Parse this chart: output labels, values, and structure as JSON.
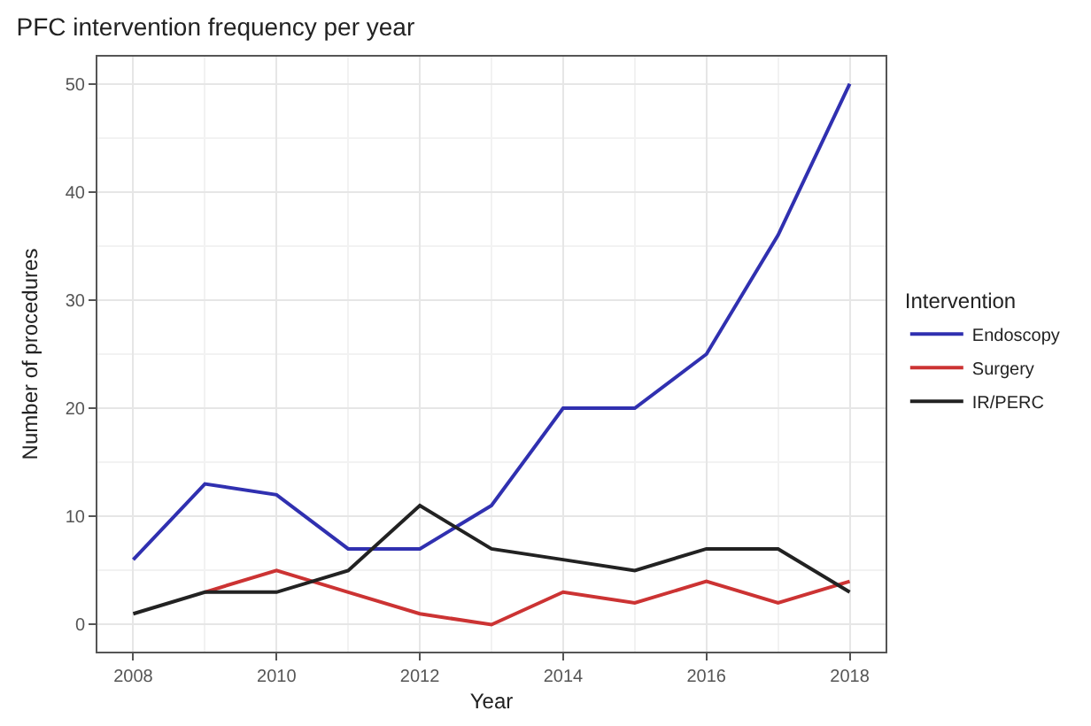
{
  "chart_data": {
    "type": "line",
    "title": "PFC intervention frequency per year",
    "xlabel": "Year",
    "ylabel": "Number of procedures",
    "legend_title": "Intervention",
    "x": [
      2008,
      2009,
      2010,
      2011,
      2012,
      2013,
      2014,
      2015,
      2016,
      2017,
      2018
    ],
    "series": [
      {
        "name": "Endoscopy",
        "color": "#3030b0",
        "values": [
          6,
          13,
          12,
          7,
          7,
          11,
          20,
          20,
          25,
          36,
          50
        ]
      },
      {
        "name": "Surgery",
        "color": "#cc3333",
        "values": [
          null,
          3,
          5,
          3,
          1,
          0,
          3,
          2,
          4,
          2,
          4
        ]
      },
      {
        "name": "IR/PERC",
        "color": "#222222",
        "values": [
          1,
          3,
          3,
          5,
          11,
          7,
          6,
          5,
          7,
          7,
          3
        ]
      }
    ],
    "xlim": [
      2007.5,
      2018.5
    ],
    "xticks": [
      2008,
      2010,
      2012,
      2014,
      2016,
      2018
    ],
    "ylim": [
      -2.5,
      52.5
    ],
    "yticks": [
      0,
      10,
      20,
      30,
      40,
      50
    ],
    "grid": true,
    "legend": "right",
    "marker": "none",
    "line_style": "solid"
  }
}
